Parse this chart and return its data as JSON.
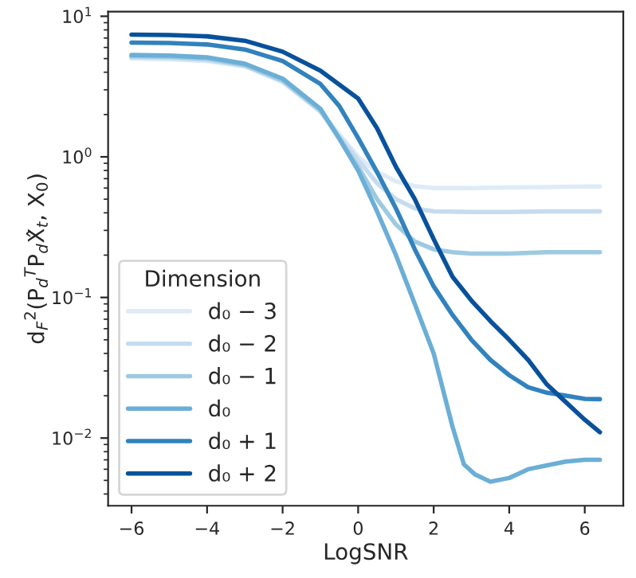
{
  "chart_data": {
    "type": "line",
    "xlabel": "LogSNR",
    "ylabel": "d$_{F}$$^{2}$(P$_{d}$$^{T}$P$_{d}$X̂$_{t}$, X$_{0}$)",
    "legend_title": "Dimension",
    "legend": "bottom left",
    "log": "y",
    "grid": false,
    "marker": "none",
    "line_style": "solid",
    "xlim": [
      -6.62,
      7.02
    ],
    "xticks": [
      {
        "value": -6,
        "label": "−6"
      },
      {
        "value": -4,
        "label": "−4"
      },
      {
        "value": -2,
        "label": "−2"
      },
      0,
      2,
      4,
      6
    ],
    "ylim": [
      0.0033,
      10.8
    ],
    "yticks": [
      {
        "value": 0.01,
        "label": "10$^{−2}$"
      },
      {
        "value": 0.1,
        "label": "10$^{−1}$"
      },
      {
        "value": 1,
        "label": "10$^{0}$"
      },
      {
        "value": 10,
        "label": "10$^{1}$"
      }
    ],
    "series": [
      {
        "name": "d₀ − 3",
        "color": "#deebf7",
        "x": [
          -6,
          -5,
          -4,
          -3,
          -2,
          -1,
          -0.5,
          0,
          0.5,
          1,
          1.5,
          2,
          3,
          4,
          5,
          6,
          6.4
        ],
        "values": [
          5.0,
          4.95,
          4.8,
          4.4,
          3.4,
          2.1,
          1.45,
          1.0,
          0.78,
          0.67,
          0.62,
          0.6,
          0.6,
          0.605,
          0.61,
          0.615,
          0.615
        ]
      },
      {
        "name": "d₀ − 2",
        "color": "#c6dbef",
        "x": [
          -6,
          -5,
          -4,
          -3,
          -2,
          -1,
          -0.5,
          0,
          0.5,
          1,
          1.5,
          2,
          3,
          4,
          5,
          6,
          6.4
        ],
        "values": [
          5.1,
          5.05,
          4.9,
          4.45,
          3.45,
          2.1,
          1.4,
          0.95,
          0.65,
          0.5,
          0.43,
          0.41,
          0.405,
          0.405,
          0.41,
          0.41,
          0.41
        ]
      },
      {
        "name": "d₀ − 1",
        "color": "#9ecae1",
        "x": [
          -6,
          -5,
          -4,
          -3,
          -2,
          -1,
          -0.5,
          0,
          0.5,
          1,
          1.5,
          2,
          2.5,
          3,
          4,
          5,
          6,
          6.4
        ],
        "values": [
          5.2,
          5.15,
          5.0,
          4.5,
          3.5,
          2.15,
          1.35,
          0.85,
          0.5,
          0.33,
          0.25,
          0.22,
          0.21,
          0.205,
          0.205,
          0.21,
          0.21,
          0.21
        ]
      },
      {
        "name": "d₀",
        "color": "#6baed6",
        "x": [
          -6,
          -5,
          -4,
          -3,
          -2,
          -1,
          -0.5,
          0,
          0.5,
          1,
          1.5,
          2,
          2.5,
          2.8,
          3.1,
          3.5,
          4,
          4.5,
          5,
          5.5,
          6,
          6.4
        ],
        "values": [
          5.3,
          5.25,
          5.1,
          4.6,
          3.6,
          2.2,
          1.35,
          0.8,
          0.41,
          0.2,
          0.09,
          0.04,
          0.012,
          0.0065,
          0.0055,
          0.0049,
          0.0052,
          0.006,
          0.0064,
          0.0068,
          0.007,
          0.007
        ]
      },
      {
        "name": "d₀ + 1",
        "color": "#3182bd",
        "x": [
          -6,
          -5,
          -4,
          -3,
          -2,
          -1,
          -0.5,
          0,
          0.5,
          1,
          1.5,
          2,
          2.5,
          3,
          3.5,
          4,
          4.5,
          5,
          5.5,
          6,
          6.4
        ],
        "values": [
          6.5,
          6.45,
          6.3,
          5.8,
          4.8,
          3.3,
          2.3,
          1.36,
          0.78,
          0.43,
          0.22,
          0.12,
          0.075,
          0.05,
          0.036,
          0.028,
          0.023,
          0.021,
          0.02,
          0.019,
          0.0189
        ]
      },
      {
        "name": "d₀ + 2",
        "color": "#08519c",
        "x": [
          -6,
          -5,
          -4,
          -3,
          -2,
          -1,
          0,
          0.5,
          1,
          1.5,
          2,
          2.5,
          3,
          3.5,
          4,
          4.5,
          5,
          5.5,
          6,
          6.4
        ],
        "values": [
          7.4,
          7.35,
          7.2,
          6.7,
          5.6,
          4.1,
          2.6,
          1.6,
          0.85,
          0.5,
          0.26,
          0.14,
          0.095,
          0.068,
          0.05,
          0.036,
          0.024,
          0.018,
          0.0135,
          0.011
        ]
      }
    ]
  }
}
